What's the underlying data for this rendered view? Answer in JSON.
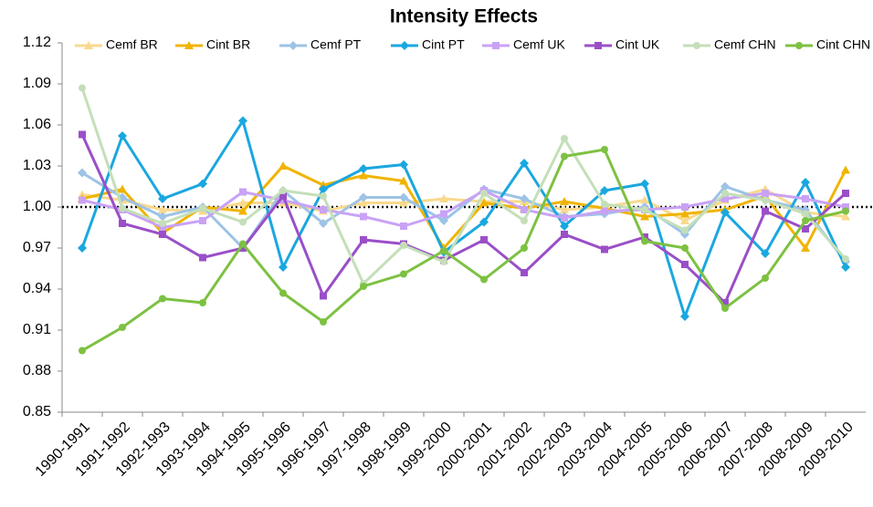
{
  "chart_data": {
    "type": "line",
    "title": "Intensity Effects",
    "categories": [
      "1990-1991",
      "1991-1992",
      "1992-1993",
      "1993-1994",
      "1994-1995",
      "1995-1996",
      "1996-1997",
      "1997-1998",
      "1998-1999",
      "1999-2000",
      "2000-2001",
      "2001-2002",
      "2002-2003",
      "2003-2004",
      "2004-2005",
      "2005-2006",
      "2006-2007",
      "2007-2008",
      "2008-2009",
      "2009-2010"
    ],
    "series": [
      {
        "name": "Cemf BR",
        "color": "#f9d98c",
        "marker": "triangle",
        "values": [
          1.009,
          1.005,
          0.998,
          0.997,
          1.003,
          1.003,
          0.997,
          1.003,
          1.003,
          1.006,
          1.004,
          1.004,
          0.998,
          1.0,
          1.005,
          0.99,
          1.005,
          1.013,
          0.996,
          0.993
        ]
      },
      {
        "name": "Cint BR",
        "color": "#f0b400",
        "marker": "triangle",
        "values": [
          1.006,
          1.013,
          0.981,
          1.0,
          0.997,
          1.03,
          1.016,
          1.023,
          1.019,
          0.97,
          1.003,
          0.999,
          1.004,
          0.999,
          0.993,
          0.995,
          0.998,
          1.008,
          0.97,
          1.027
        ]
      },
      {
        "name": "Cemf PT",
        "color": "#9dc3e6",
        "marker": "diamond",
        "values": [
          1.025,
          1.007,
          0.993,
          1.0,
          0.97,
          1.012,
          0.988,
          1.007,
          1.007,
          0.99,
          1.013,
          1.006,
          0.993,
          0.995,
          1.0,
          0.98,
          1.015,
          1.005,
          0.998,
          0.96
        ]
      },
      {
        "name": "Cint PT",
        "color": "#1aa7e0",
        "marker": "diamond",
        "values": [
          0.97,
          1.052,
          1.006,
          1.017,
          1.063,
          0.956,
          1.013,
          1.028,
          1.031,
          0.967,
          0.989,
          1.032,
          0.986,
          1.012,
          1.017,
          0.92,
          0.996,
          0.966,
          1.018,
          0.956
        ]
      },
      {
        "name": "Cemf UK",
        "color": "#c9a2f5",
        "marker": "square",
        "values": [
          1.005,
          0.998,
          0.985,
          0.99,
          1.011,
          1.005,
          0.998,
          0.993,
          0.986,
          0.995,
          1.012,
          0.998,
          0.992,
          0.997,
          0.998,
          1.0,
          1.006,
          1.01,
          1.006,
          1.0
        ]
      },
      {
        "name": "Cint UK",
        "color": "#9a4fc8",
        "marker": "square",
        "values": [
          1.053,
          0.988,
          0.98,
          0.963,
          0.97,
          1.008,
          0.935,
          0.976,
          0.973,
          0.961,
          0.976,
          0.952,
          0.98,
          0.969,
          0.978,
          0.958,
          0.93,
          0.997,
          0.984,
          1.01
        ]
      },
      {
        "name": "Cemf CHN",
        "color": "#c4dfb8",
        "marker": "circle",
        "values": [
          1.087,
          0.999,
          0.988,
          0.999,
          0.989,
          1.012,
          1.008,
          0.944,
          0.972,
          0.96,
          1.01,
          0.99,
          1.05,
          1.002,
          0.998,
          0.983,
          1.01,
          1.005,
          0.995,
          0.962
        ]
      },
      {
        "name": "Cint CHN",
        "color": "#7dc142",
        "marker": "circle",
        "values": [
          0.895,
          0.912,
          0.933,
          0.93,
          0.973,
          0.937,
          0.916,
          0.942,
          0.951,
          0.968,
          0.947,
          0.97,
          1.037,
          1.042,
          0.975,
          0.97,
          0.926,
          0.948,
          0.99,
          0.997
        ]
      }
    ],
    "ylim": [
      0.85,
      1.12
    ],
    "yticks": [
      0.85,
      0.88,
      0.91,
      0.94,
      0.97,
      {
        "value": 1.0,
        "label": "1.00"
      },
      1.03,
      1.06,
      1.09,
      1.12
    ],
    "reference_line": 1.0,
    "legend": "top"
  }
}
